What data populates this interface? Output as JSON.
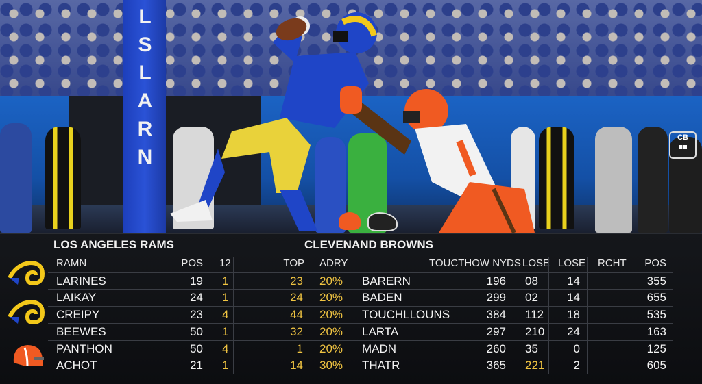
{
  "pylon_text": "LSLARN",
  "left_team": "LOS ANGELES RAMS",
  "right_team": "CLEVENAND BROWNS",
  "headers": {
    "name": "RAMN",
    "pos": "POS",
    "c12": "12",
    "top": "TOP",
    "adry": "ADRY",
    "touch": "TOUCTHOW NYDS",
    "lose1": "LOSE",
    "lose2": "LOSE",
    "rcht": "RCHT",
    "pos2": "POS"
  },
  "rows": [
    {
      "name": "LARINES",
      "pos": "19",
      "c12": "1",
      "top": "23",
      "adry": "20%",
      "opp": "BARERN",
      "yds": "196",
      "lose1": "08",
      "lose2": "14",
      "pos2": "355"
    },
    {
      "name": "LAIKAY",
      "pos": "24",
      "c12": "1",
      "top": "24",
      "adry": "20%",
      "opp": "BADEN",
      "yds": "299",
      "lose1": "02",
      "lose2": "14",
      "pos2": "655"
    },
    {
      "name": "CREIPY",
      "pos": "23",
      "c12": "4",
      "top": "44",
      "adry": "20%",
      "opp": "TOUCHLLOUNS",
      "yds": "384",
      "lose1": "112",
      "lose2": "18",
      "pos2": "535"
    },
    {
      "name": "BEEWES",
      "pos": "50",
      "c12": "1",
      "top": "32",
      "adry": "20%",
      "opp": "LARTA",
      "yds": "297",
      "lose1": "210",
      "lose2": "24",
      "pos2": "163"
    },
    {
      "name": "PANTHON",
      "pos": "50",
      "c12": "4",
      "top": "1",
      "adry": "20%",
      "opp": "MADN",
      "yds": "260",
      "lose1": "35",
      "lose2": "0",
      "pos2": "125"
    },
    {
      "name": "ACHOT",
      "pos": "21",
      "c12": "1",
      "top": "14",
      "adry": "30%",
      "opp": "THATR",
      "yds": "365",
      "lose1": "221",
      "lose2": "2",
      "pos2": "605"
    }
  ],
  "colors": {
    "accent": "#f0c442",
    "rams_blue": "#1d3fbb",
    "browns_orange": "#f05a22"
  }
}
